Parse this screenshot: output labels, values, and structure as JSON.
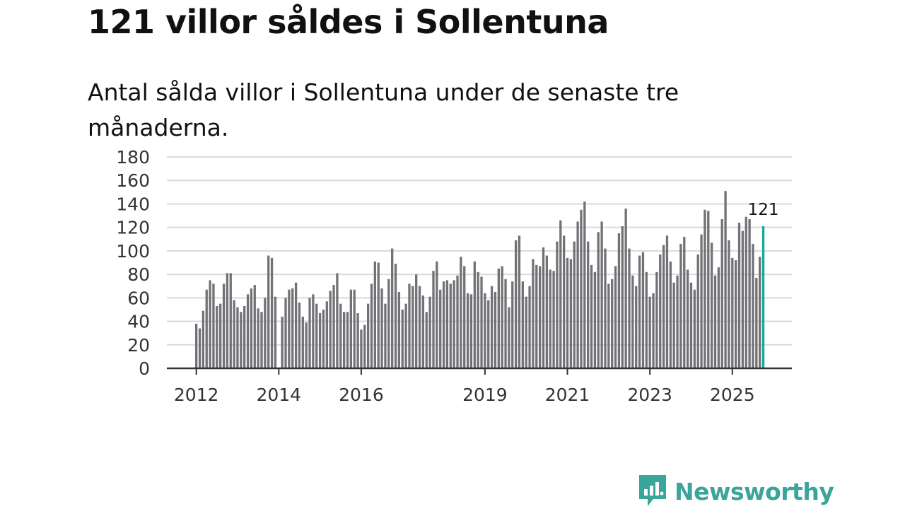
{
  "title": "121 villor såldes i Sollentuna",
  "subtitle": "Antal sålda villor i Sollentuna under de senaste tre månaderna.",
  "brand": {
    "name": "Newsworthy",
    "icon": "bar-chart-logo-icon",
    "color": "#3aa59a"
  },
  "colors": {
    "bar": "#727176",
    "highlight": "#1aa59b",
    "grid": "#d9d9d9",
    "axis": "#333333"
  },
  "chart_data": {
    "type": "bar",
    "title": "121 villor såldes i Sollentuna",
    "xlabel": "",
    "ylabel": "",
    "ylim": [
      0,
      180
    ],
    "yticks": [
      0,
      20,
      40,
      60,
      80,
      100,
      120,
      140,
      160,
      180
    ],
    "x_start": "2012-01",
    "x_tick_labels": [
      {
        "label": "2012",
        "index": 0
      },
      {
        "label": "2014",
        "index": 24
      },
      {
        "label": "2016",
        "index": 48
      },
      {
        "label": "2019",
        "index": 84
      },
      {
        "label": "2021",
        "index": 108
      },
      {
        "label": "2023",
        "index": 132
      },
      {
        "label": "2025",
        "index": 156
      }
    ],
    "highlight_index": 165,
    "highlight_label": "121",
    "grid": true,
    "values": [
      38,
      34,
      49,
      67,
      75,
      72,
      53,
      55,
      72,
      81,
      81,
      58,
      52,
      48,
      53,
      63,
      68,
      71,
      51,
      48,
      60,
      96,
      94,
      61,
      0,
      44,
      60,
      67,
      68,
      73,
      56,
      44,
      39,
      60,
      63,
      55,
      47,
      50,
      57,
      66,
      71,
      81,
      55,
      48,
      48,
      67,
      67,
      47,
      33,
      37,
      55,
      72,
      91,
      90,
      68,
      55,
      76,
      102,
      89,
      65,
      50,
      55,
      72,
      70,
      80,
      70,
      62,
      48,
      61,
      83,
      91,
      67,
      74,
      75,
      72,
      75,
      79,
      95,
      87,
      64,
      63,
      91,
      82,
      78,
      64,
      58,
      70,
      65,
      85,
      87,
      76,
      52,
      74,
      109,
      113,
      74,
      61,
      70,
      93,
      88,
      87,
      103,
      96,
      84,
      83,
      108,
      126,
      113,
      94,
      93,
      108,
      125,
      135,
      142,
      108,
      88,
      82,
      116,
      125,
      102,
      72,
      76,
      87,
      115,
      121,
      136,
      102,
      79,
      70,
      96,
      99,
      82,
      61,
      64,
      82,
      97,
      105,
      113,
      91,
      73,
      79,
      106,
      112,
      84,
      73,
      67,
      97,
      114,
      135,
      134,
      107,
      79,
      86,
      127,
      151,
      109,
      94,
      92,
      124,
      117,
      129,
      127,
      106,
      77,
      95,
      121
    ]
  }
}
